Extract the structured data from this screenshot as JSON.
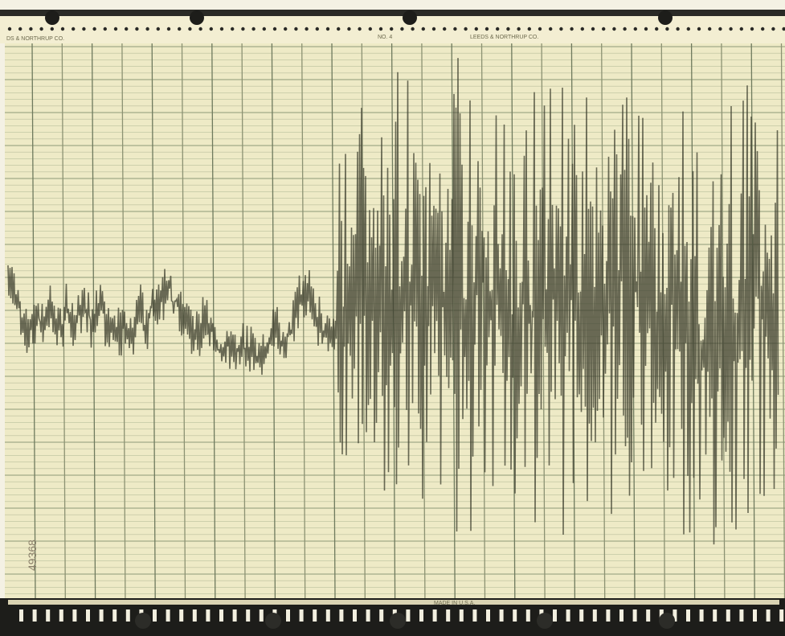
{
  "header": {
    "left_brand": "DS & NORTHRUP CO.",
    "chart_number": "NO. 4",
    "center_brand": "LEEDS & NORTHRUP CO."
  },
  "footer": {
    "made_in": "MADE IN U.S.A."
  },
  "margin": {
    "serial": "49368"
  }
}
